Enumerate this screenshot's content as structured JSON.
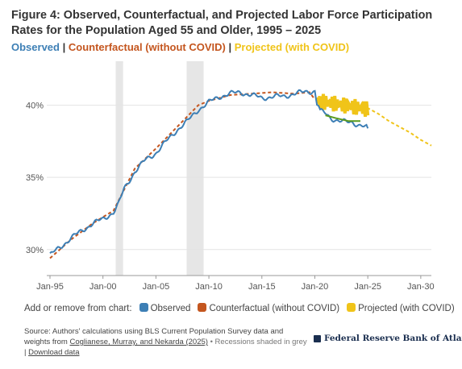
{
  "title": "Figure 4: Observed, Counterfactual, and Projected Labor Force Participation Rates for the Population Aged 55 and Older, 1995 – 2025",
  "legend_line": {
    "observed": "Observed",
    "sep1": "|",
    "counterfactual": "Counterfactual (without COVID)",
    "sep2": "|",
    "projected": "Projected (with COVID)"
  },
  "controls": {
    "prompt": "Add or remove from chart:",
    "observed": "Observed",
    "counterfactual": "Counterfactual (without COVID)",
    "projected": "Projected (with COVID)"
  },
  "footer": {
    "line1": "Source: Authors' calculations using BLS Current Population Survey data and",
    "line2_prefix": "weights from",
    "citation": "Coglianese, Murray, and Nekarda (2025)",
    "recession_note": "• Recessions shaded in grey",
    "pipe": "|",
    "download": "Download data"
  },
  "brand": "Federal Reserve Bank of Atlanta",
  "colors": {
    "observed": "#3d7fb5",
    "counterfactual": "#c4561f",
    "projected": "#f0c419",
    "green_band": "#5a9a1c",
    "recession": "#e6e6e6"
  },
  "chart_data": {
    "type": "line",
    "x_ticks": [
      "Jan-95",
      "Jan-00",
      "Jan-05",
      "Jan-10",
      "Jan-15",
      "Jan-20",
      "Jan-25",
      "Jan-30"
    ],
    "y_ticks": [
      "30%",
      "35%",
      "40%"
    ],
    "xlim": [
      1995,
      2031
    ],
    "ylim": [
      28.2,
      42.6
    ],
    "grid": "horizontal",
    "recessions": [
      [
        2001.2,
        2001.9
      ],
      [
        2007.9,
        2009.5
      ]
    ],
    "series": [
      {
        "name": "Observed",
        "key": "observed",
        "x": [
          1995,
          1996,
          1997,
          1998,
          1999,
          2000,
          2001,
          2001.5,
          2002,
          2003,
          2004,
          2005,
          2006,
          2007,
          2008,
          2009,
          2010,
          2011,
          2012,
          2013,
          2014,
          2015,
          2016,
          2017,
          2018,
          2019,
          2020,
          2020.2,
          2020.5,
          2021,
          2021.5,
          2022,
          2022.5,
          2023,
          2023.5,
          2024,
          2024.5,
          2025
        ],
        "y": [
          29.6,
          30.2,
          30.8,
          31.3,
          31.8,
          32.1,
          32.6,
          33.2,
          34.2,
          35.4,
          36.2,
          36.7,
          37.5,
          38.3,
          38.9,
          39.7,
          40.2,
          40.6,
          40.8,
          40.9,
          40.7,
          40.5,
          40.6,
          40.6,
          40.8,
          40.9,
          41.0,
          39.9,
          39.6,
          39.4,
          39.1,
          39.0,
          38.9,
          38.8,
          38.8,
          38.7,
          38.6,
          38.4
        ]
      },
      {
        "name": "Counterfactual (without COVID)",
        "key": "counterfactual",
        "x": [
          1995,
          1997,
          1999,
          2001,
          2003,
          2005,
          2007,
          2009,
          2010,
          2012,
          2014,
          2016,
          2018,
          2019.5,
          2020
        ],
        "y": [
          29.4,
          30.7,
          31.8,
          32.7,
          35.6,
          37.0,
          38.5,
          40.0,
          40.3,
          40.7,
          40.8,
          40.9,
          40.8,
          40.9,
          40.4
        ]
      },
      {
        "name": "Projected (with COVID)",
        "key": "projected",
        "x": [
          2020.3,
          2021,
          2022,
          2023,
          2024,
          2025,
          2026,
          2027,
          2028,
          2029,
          2030,
          2031
        ],
        "y": [
          40.6,
          40.5,
          40.2,
          40.0,
          39.8,
          39.8,
          39.4,
          38.9,
          38.5,
          38.1,
          37.6,
          37.2
        ]
      }
    ]
  }
}
